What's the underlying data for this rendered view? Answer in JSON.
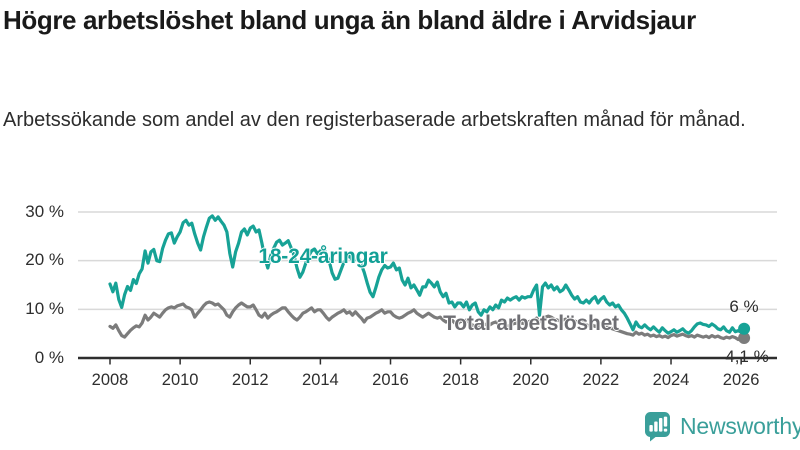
{
  "header": {
    "title": "Högre arbetslöshet bland unga än bland äldre i Arvidsjaur",
    "subtitle": "Arbetssökande som andel av den registerbaserade arbetskraften månad för månad."
  },
  "chart_data": {
    "type": "line",
    "title": "Högre arbetslöshet bland unga än bland äldre i Arvidsjaur",
    "subtitle": "Arbetssökande som andel av den registerbaserade arbetskraften månad för månad.",
    "x_start_year": 2008,
    "x_interval": "monthly",
    "x_tick_labels": [
      "2008",
      "2010",
      "2012",
      "2014",
      "2016",
      "2018",
      "2020",
      "2022",
      "2024",
      "2026"
    ],
    "y_ticks": [
      0,
      10,
      20,
      30
    ],
    "y_tick_labels": [
      "0 %",
      "10 %",
      "20 %",
      "30 %"
    ],
    "ylim": [
      0,
      31
    ],
    "grid": "horizontal",
    "legend": "inline-labels",
    "axis_color": "#2e2e2e",
    "grid_color": "#d9d9d9",
    "series": [
      {
        "name": "18-24-åringar",
        "color": "#17a296",
        "end_label": "6 %",
        "values": [
          15.2,
          13.6,
          15.4,
          12.0,
          10.4,
          13.0,
          14.7,
          13.9,
          16.1,
          15.3,
          17.3,
          18.3,
          22.0,
          19.5,
          21.8,
          22.3,
          20.0,
          19.8,
          22.5,
          24.2,
          25.5,
          25.7,
          23.6,
          24.9,
          25.9,
          27.8,
          28.3,
          27.3,
          27.7,
          25.5,
          23.6,
          22.2,
          24.9,
          26.9,
          28.7,
          29.2,
          28.3,
          29.0,
          28.1,
          27.3,
          25.9,
          21.5,
          18.7,
          21.8,
          23.6,
          25.9,
          26.5,
          25.3,
          26.7,
          27.1,
          25.9,
          26.3,
          23.6,
          20.5,
          18.5,
          21.0,
          22.5,
          23.8,
          24.2,
          23.2,
          23.6,
          24.1,
          22.6,
          21.0,
          18.5,
          16.6,
          17.7,
          19.5,
          21.0,
          22.0,
          22.4,
          21.4,
          22.0,
          22.6,
          21.4,
          20.0,
          17.5,
          16.2,
          16.4,
          18.0,
          19.6,
          20.6,
          21.0,
          20.0,
          20.2,
          20.8,
          19.2,
          17.6,
          15.5,
          13.5,
          12.6,
          14.5,
          16.6,
          18.1,
          19.0,
          18.5,
          18.7,
          19.5,
          18.1,
          18.5,
          16.0,
          15.0,
          16.4,
          14.4,
          15.0,
          14.0,
          12.9,
          14.6,
          14.6,
          16.0,
          15.4,
          14.6,
          15.6,
          13.6,
          12.6,
          13.3,
          11.3,
          11.5,
          10.5,
          11.3,
          11.3,
          10.5,
          11.5,
          9.9,
          10.9,
          11.3,
          9.5,
          8.8,
          9.9,
          9.5,
          10.5,
          9.9,
          10.9,
          10.3,
          11.9,
          11.5,
          12.3,
          11.9,
          12.3,
          12.6,
          11.9,
          12.6,
          12.3,
          12.6,
          12.6,
          14.0,
          15.0,
          8.8,
          14.6,
          15.4,
          14.4,
          15.0,
          14.0,
          14.6,
          13.6,
          14.0,
          15.0,
          14.0,
          12.9,
          12.1,
          12.6,
          11.5,
          11.3,
          11.9,
          11.3,
          12.1,
          12.6,
          11.3,
          12.1,
          12.6,
          11.5,
          10.9,
          11.3,
          10.5,
          10.9,
          9.9,
          9.2,
          8.2,
          7.0,
          5.8,
          7.4,
          6.5,
          6.2,
          6.8,
          6.2,
          5.8,
          6.4,
          5.8,
          5.3,
          6.2,
          5.6,
          5.1,
          5.4,
          5.8,
          5.3,
          5.6,
          6.0,
          5.4,
          5.1,
          5.6,
          6.4,
          7.0,
          7.2,
          6.9,
          6.8,
          6.5,
          7.0,
          6.6,
          6.0,
          5.8,
          6.4,
          5.6,
          5.3,
          6.2,
          5.4,
          5.6,
          5.3,
          6.0
        ]
      },
      {
        "name": "Total arbetslöshet",
        "color": "#7c7c7c",
        "end_label": "4,1 %",
        "values": [
          6.5,
          6.1,
          6.8,
          5.6,
          4.6,
          4.3,
          5.0,
          5.7,
          6.2,
          6.6,
          6.4,
          7.2,
          8.8,
          7.8,
          8.4,
          9.2,
          8.8,
          8.4,
          9.2,
          9.9,
          10.3,
          10.5,
          10.3,
          10.7,
          10.9,
          11.1,
          10.5,
          10.3,
          9.9,
          8.4,
          9.2,
          9.9,
          10.7,
          11.3,
          11.5,
          11.3,
          10.9,
          11.1,
          10.5,
          9.9,
          8.8,
          8.4,
          9.5,
          10.3,
          10.9,
          11.3,
          10.9,
          10.5,
          10.5,
          10.9,
          9.9,
          8.8,
          8.4,
          9.2,
          8.2,
          8.8,
          9.2,
          9.5,
          9.9,
          10.3,
          10.3,
          9.5,
          8.8,
          8.2,
          7.8,
          8.4,
          9.2,
          9.5,
          9.9,
          10.3,
          9.5,
          9.9,
          9.9,
          9.2,
          8.4,
          7.8,
          8.4,
          8.8,
          9.2,
          9.5,
          9.9,
          9.2,
          9.5,
          8.8,
          9.5,
          8.8,
          8.2,
          7.4,
          8.2,
          8.4,
          8.8,
          9.2,
          9.5,
          9.9,
          9.2,
          9.5,
          9.5,
          8.8,
          8.4,
          8.2,
          8.4,
          8.8,
          9.2,
          9.5,
          9.9,
          9.2,
          8.8,
          8.4,
          8.8,
          9.2,
          8.8,
          8.4,
          8.2,
          8.4,
          7.8,
          7.4,
          7.6,
          7.8,
          7.2,
          7.0,
          7.6,
          7.4,
          7.8,
          7.2,
          6.8,
          6.5,
          6.8,
          6.5,
          6.8,
          7.0,
          6.8,
          7.2,
          7.4,
          7.0,
          7.2,
          6.8,
          6.5,
          6.8,
          7.0,
          7.2,
          7.0,
          7.2,
          7.0,
          7.4,
          7.6,
          7.8,
          8.2,
          7.4,
          8.0,
          8.4,
          8.6,
          8.4,
          8.0,
          7.8,
          7.6,
          7.8,
          8.0,
          8.2,
          7.8,
          7.6,
          7.4,
          7.0,
          7.2,
          6.8,
          6.6,
          6.8,
          6.5,
          6.8,
          7.0,
          6.8,
          6.5,
          6.2,
          6.0,
          5.8,
          5.6,
          5.4,
          5.2,
          5.0,
          4.9,
          4.7,
          5.3,
          4.9,
          5.1,
          4.7,
          4.9,
          4.5,
          4.7,
          4.4,
          4.6,
          4.3,
          4.5,
          4.2,
          4.6,
          4.8,
          4.5,
          4.7,
          4.9,
          4.6,
          4.4,
          4.6,
          4.3,
          4.7,
          4.5,
          4.3,
          4.5,
          4.2,
          4.6,
          4.3,
          4.5,
          4.2,
          4.0,
          4.3,
          4.1,
          4.4,
          4.2,
          3.8,
          4.2,
          4.1
        ]
      }
    ]
  },
  "branding": {
    "name": "Newsworthy",
    "color": "#3a9f9a",
    "icon": "bar-chart-speech-bubble-icon"
  }
}
